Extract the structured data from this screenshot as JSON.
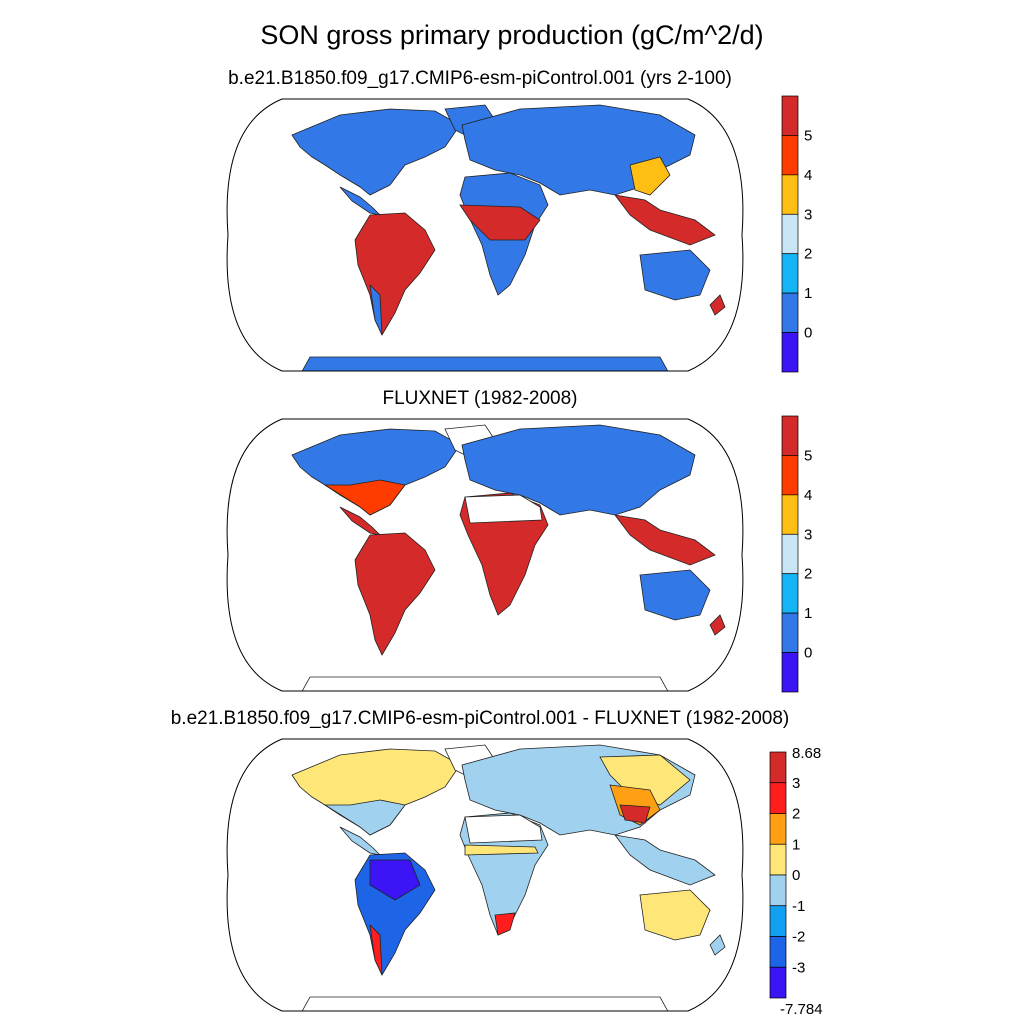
{
  "title": "SON gross primary production (gC/m^2/d)",
  "panels": [
    {
      "subtitle": "b.e21.B1850.f09_g17.CMIP6-esm-piControl.001 (yrs 2-100)",
      "colorbar": {
        "labels": [
          "5",
          "4",
          "3",
          "2",
          "1",
          "0"
        ],
        "colors": [
          "#d42a2a",
          "#ff3c00",
          "#ffbe14",
          "#c8e6f5",
          "#14b4f5",
          "#3278e6",
          "#3c14f5"
        ]
      }
    },
    {
      "subtitle": "FLUXNET (1982-2008)",
      "colorbar": {
        "labels": [
          "5",
          "4",
          "3",
          "2",
          "1",
          "0"
        ],
        "colors": [
          "#d42a2a",
          "#ff3c00",
          "#ffbe14",
          "#c8e6f5",
          "#14b4f5",
          "#3278e6",
          "#3c14f5"
        ]
      }
    },
    {
      "subtitle": "b.e21.B1850.f09_g17.CMIP6-esm-piControl.001 - FLUXNET (1982-2008)",
      "colorbar": {
        "max_label": "8.68",
        "labels": [
          "3",
          "2",
          "1",
          "0",
          "-1",
          "-2",
          "-3"
        ],
        "min_label": "-7.784",
        "colors": [
          "#d42a2a",
          "#ff1e1e",
          "#ffa014",
          "#ffe678",
          "#a0d2f0",
          "#14a0f0",
          "#1e64e6",
          "#3c14f5"
        ]
      }
    }
  ]
}
